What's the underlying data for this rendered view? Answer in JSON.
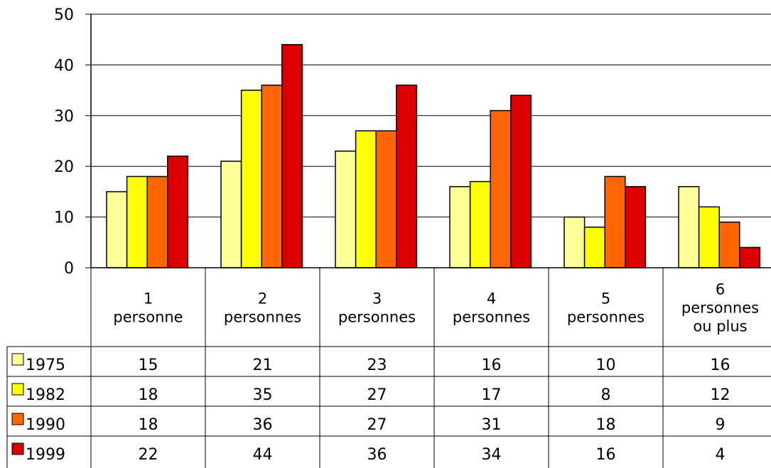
{
  "colors": {
    "background": "#ffffff",
    "gridline": "#000000",
    "axis": "#000000",
    "series_1975": "#FFFF99",
    "series_1982": "#FFFF00",
    "series_1990": "#FF6600",
    "series_1999": "#DD0000"
  },
  "chart_data": {
    "type": "bar",
    "title": "",
    "xlabel": "",
    "ylabel": "",
    "ylim": [
      0,
      50
    ],
    "yticks": [
      "0",
      "10",
      "20",
      "30",
      "40",
      "50"
    ],
    "grid": true,
    "legend": "data-table-left",
    "categories": [
      [
        "1",
        "personne"
      ],
      [
        "2",
        "personnes"
      ],
      [
        "3",
        "personnes"
      ],
      [
        "4",
        "personnes"
      ],
      [
        "5",
        "personnes"
      ],
      [
        "6",
        "personnes",
        "ou plus"
      ]
    ],
    "series": [
      {
        "name": "1975",
        "color": "#FFFF99",
        "values": [
          15,
          21,
          23,
          16,
          10,
          16
        ]
      },
      {
        "name": "1982",
        "color": "#FFFF00",
        "values": [
          18,
          35,
          27,
          17,
          8,
          12
        ]
      },
      {
        "name": "1990",
        "color": "#FF6600",
        "values": [
          18,
          36,
          27,
          31,
          18,
          9
        ]
      },
      {
        "name": "1999",
        "color": "#DD0000",
        "values": [
          22,
          44,
          36,
          34,
          16,
          4
        ]
      }
    ]
  }
}
